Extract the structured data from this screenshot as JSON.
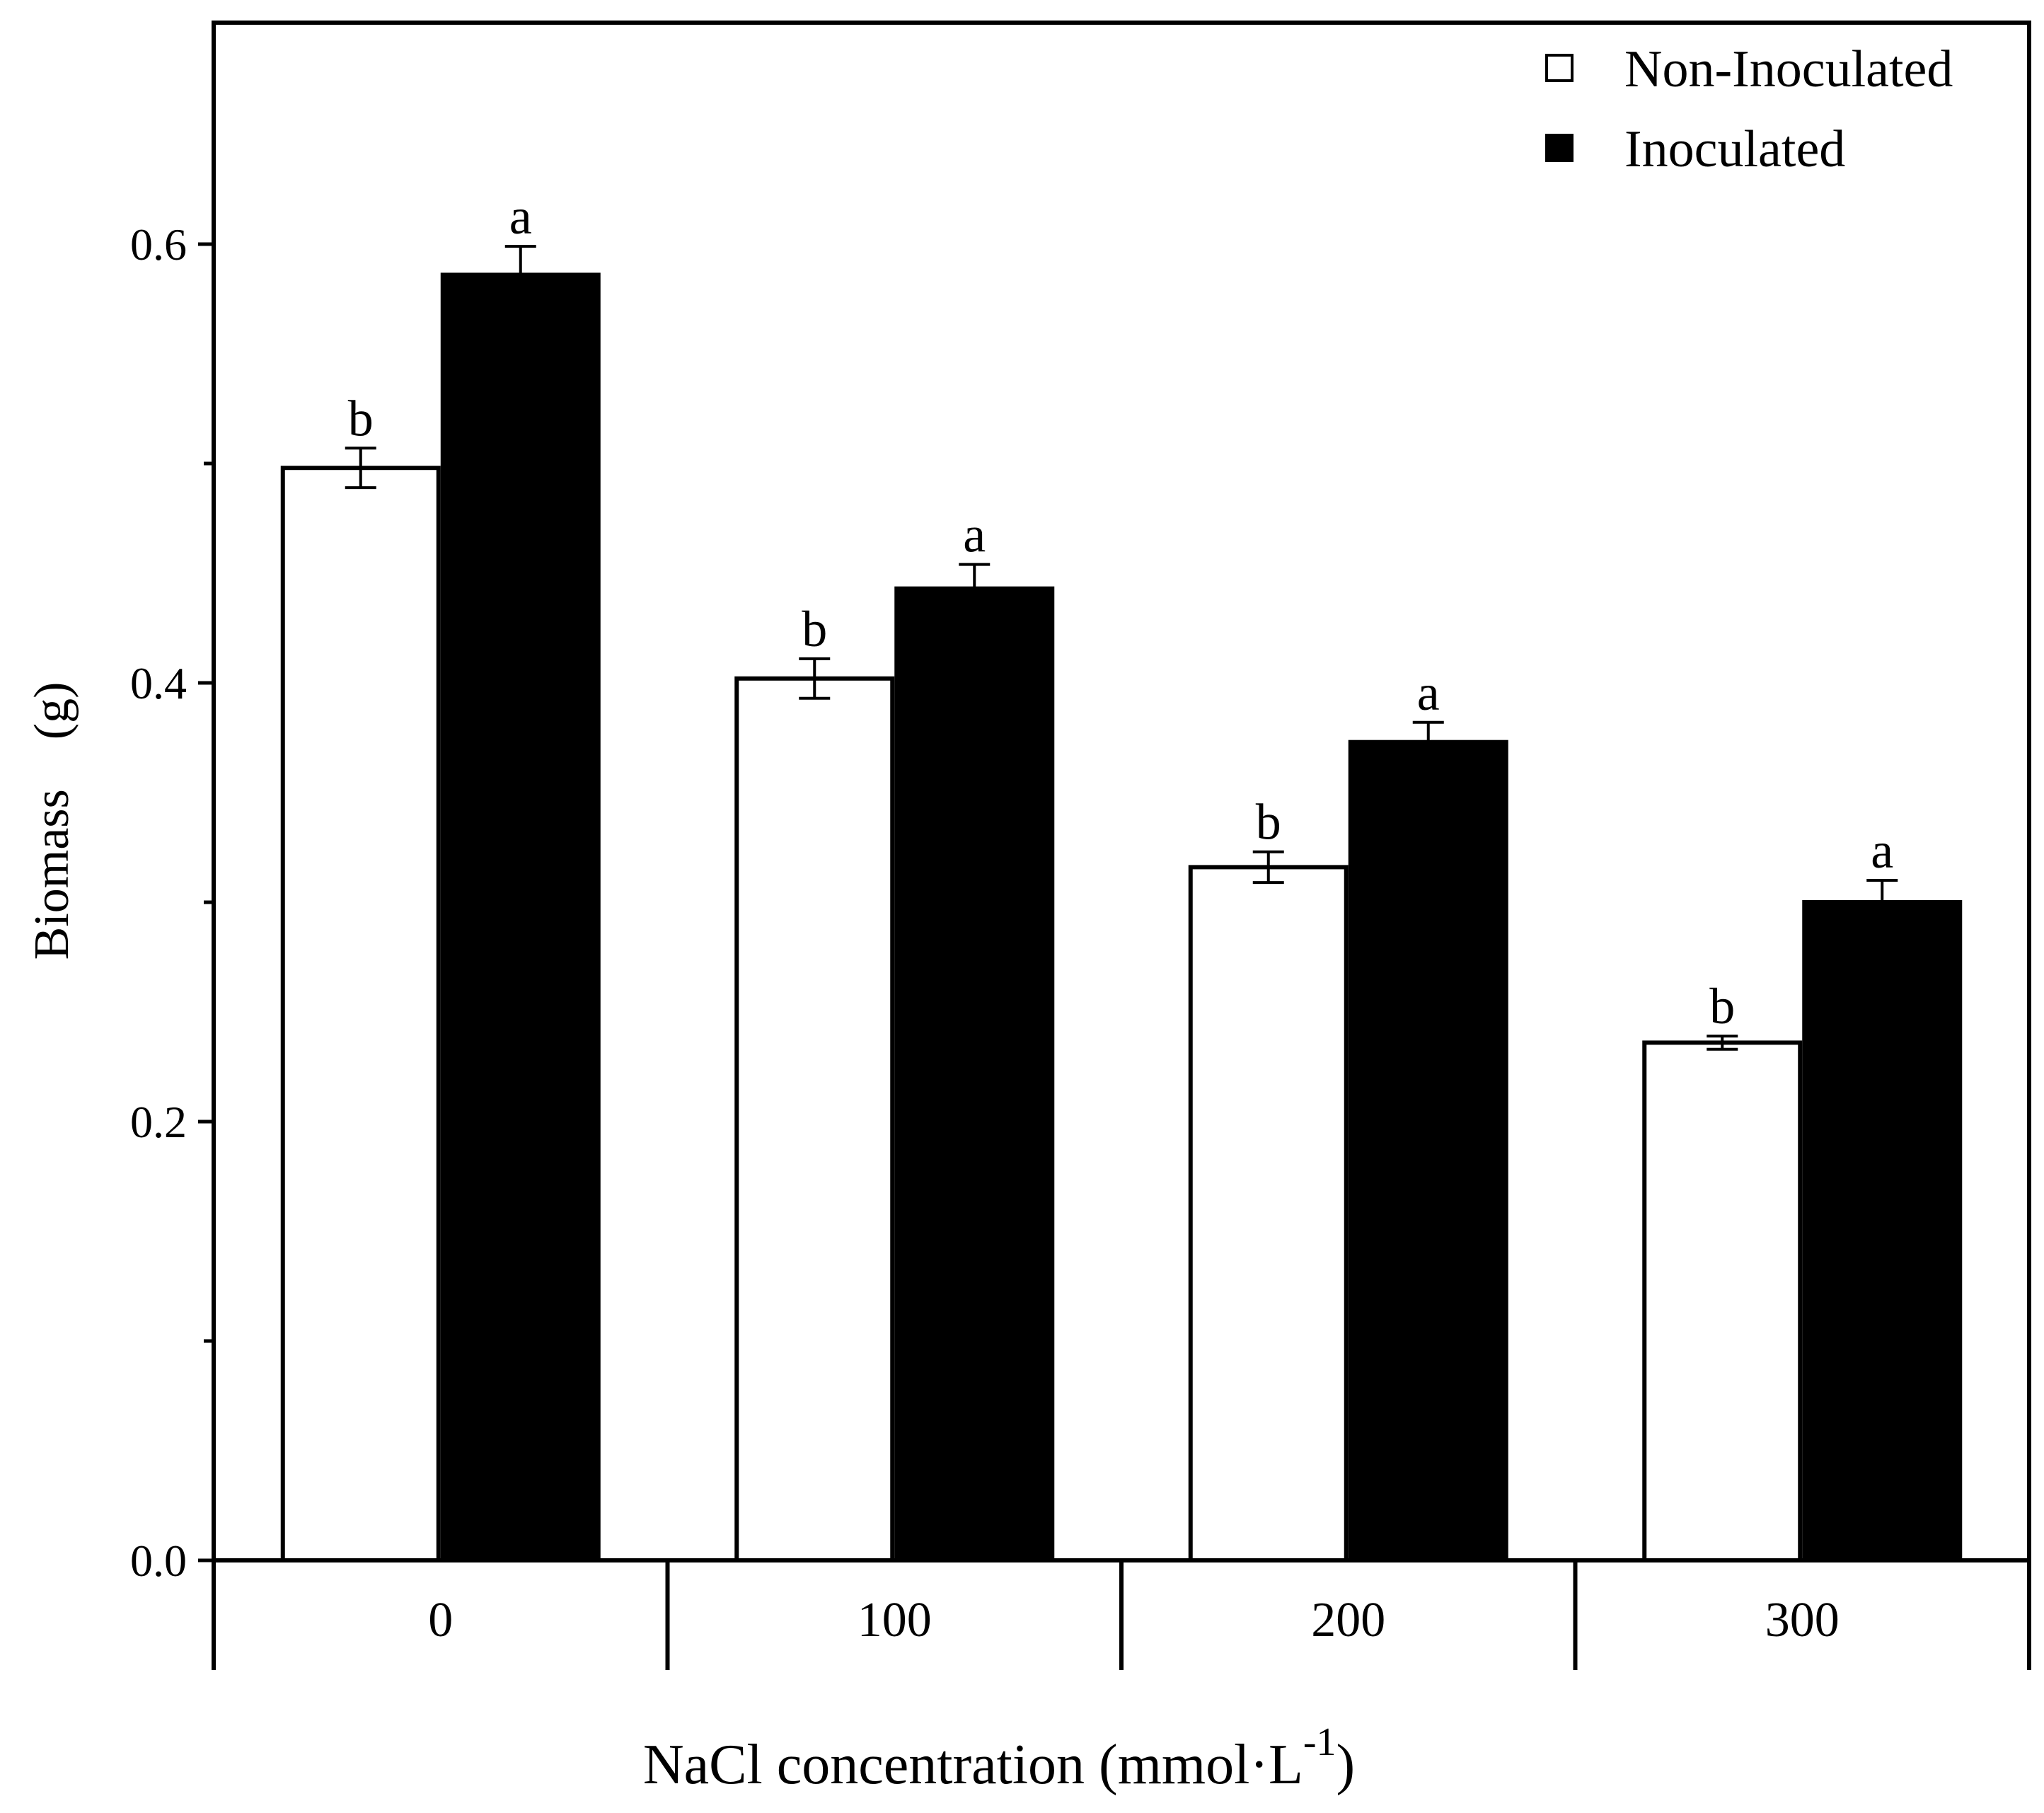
{
  "chart_data": {
    "type": "bar",
    "title": "",
    "xlabel_main": "NaCl concentration (mmol·L",
    "xlabel_sup": "-1",
    "xlabel_close": ")",
    "ylabel": "Biomass　(g)",
    "categories": [
      "0",
      "100",
      "200",
      "300"
    ],
    "ylim": [
      0,
      0.7
    ],
    "yticks": [
      0.0,
      0.2,
      0.4,
      0.6
    ],
    "ytick_labels": [
      "0.0",
      "0.2",
      "0.4",
      "0.6"
    ],
    "yminor_ticks": [
      0.1,
      0.3,
      0.5
    ],
    "grid": false,
    "legend_position": "top-right",
    "series": [
      {
        "name": "Non-Inoculated",
        "fill": "#ffffff",
        "values": [
          0.498,
          0.402,
          0.316,
          0.236
        ],
        "errors": [
          0.009,
          0.009,
          0.007,
          0.003
        ],
        "letters": [
          "b",
          "b",
          "b",
          "b"
        ]
      },
      {
        "name": "Inoculated",
        "fill": "#000000",
        "values": [
          0.586,
          0.443,
          0.373,
          0.3
        ],
        "errors": [
          0.013,
          0.011,
          0.009,
          0.01
        ],
        "letters": [
          "a",
          "a",
          "a",
          "a"
        ]
      }
    ]
  }
}
